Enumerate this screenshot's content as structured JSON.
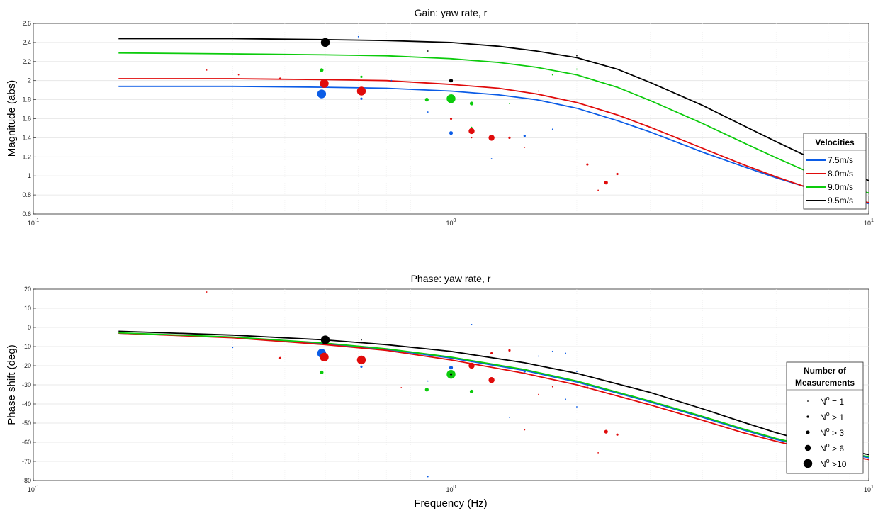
{
  "chart_data": [
    {
      "type": "line",
      "title": "Gain: yaw rate, r",
      "xlabel": "",
      "ylabel": "Magnitude (abs)",
      "xscale": "log",
      "xlim": [
        0.1,
        10
      ],
      "ylim": [
        0.6,
        2.6
      ],
      "x_tick_labels": [
        {
          "value": 0.1,
          "base": "10",
          "exp": "-1"
        },
        {
          "value": 1,
          "base": "10",
          "exp": "0"
        },
        {
          "value": 10,
          "base": "10",
          "exp": "1"
        }
      ],
      "y_ticks": [
        0.6,
        0.8,
        1,
        1.2,
        1.4,
        1.6,
        1.8,
        2,
        2.2,
        2.4,
        2.6
      ],
      "y_tick_labels": [
        "0.6",
        "0.8",
        "1",
        "1.2",
        "1.4",
        "1.6",
        "1.8",
        "2",
        "2.2",
        "2.4",
        "2.6"
      ],
      "grid": true,
      "legend": {
        "title": "Velocities",
        "placement": "bottom-right"
      },
      "series": [
        {
          "name": "7.5m/s",
          "color": "#0b5ce6",
          "x": [
            0.16,
            0.3,
            0.5,
            0.7,
            1.0,
            1.3,
            1.6,
            2.0,
            2.5,
            3.0,
            4.0,
            5.0,
            6.0,
            7.0,
            8.0,
            9.0,
            10.0
          ],
          "y": [
            1.94,
            1.94,
            1.93,
            1.92,
            1.89,
            1.85,
            1.8,
            1.71,
            1.58,
            1.46,
            1.25,
            1.1,
            0.98,
            0.89,
            0.82,
            0.76,
            0.71
          ]
        },
        {
          "name": "8.0m/s",
          "color": "#e00b0b",
          "x": [
            0.16,
            0.3,
            0.5,
            0.7,
            1.0,
            1.3,
            1.6,
            2.0,
            2.5,
            3.0,
            4.0,
            5.0,
            6.0,
            7.0,
            8.0,
            9.0,
            10.0
          ],
          "y": [
            2.02,
            2.02,
            2.01,
            2.0,
            1.96,
            1.92,
            1.86,
            1.77,
            1.64,
            1.51,
            1.29,
            1.12,
            0.99,
            0.89,
            0.82,
            0.76,
            0.72
          ]
        },
        {
          "name": "9.0m/s",
          "color": "#0ccb0c",
          "x": [
            0.16,
            0.3,
            0.5,
            0.7,
            1.0,
            1.3,
            1.6,
            2.0,
            2.5,
            3.0,
            4.0,
            5.0,
            6.0,
            7.0,
            8.0,
            9.0,
            10.0
          ],
          "y": [
            2.29,
            2.28,
            2.27,
            2.26,
            2.23,
            2.19,
            2.14,
            2.06,
            1.93,
            1.79,
            1.55,
            1.35,
            1.19,
            1.06,
            0.96,
            0.88,
            0.82
          ]
        },
        {
          "name": "9.5m/s",
          "color": "#000000",
          "x": [
            0.16,
            0.3,
            0.5,
            0.7,
            1.0,
            1.3,
            1.6,
            2.0,
            2.5,
            3.0,
            4.0,
            5.0,
            6.0,
            7.0,
            8.0,
            9.0,
            10.0
          ],
          "y": [
            2.44,
            2.44,
            2.43,
            2.42,
            2.4,
            2.36,
            2.31,
            2.24,
            2.12,
            1.98,
            1.74,
            1.53,
            1.36,
            1.22,
            1.11,
            1.03,
            0.95
          ]
        }
      ],
      "points": [
        {
          "x": 0.49,
          "y": 1.86,
          "color": "#0b5ce6",
          "n_class": 5
        },
        {
          "x": 0.497,
          "y": 1.97,
          "color": "#e00b0b",
          "n_class": 5
        },
        {
          "x": 0.61,
          "y": 1.89,
          "color": "#e00b0b",
          "n_class": 5
        },
        {
          "x": 0.5,
          "y": 2.4,
          "color": "#000000",
          "n_class": 5
        },
        {
          "x": 1.0,
          "y": 1.81,
          "color": "#0ccb0c",
          "n_class": 5
        },
        {
          "x": 0.49,
          "y": 2.11,
          "color": "#0ccb0c",
          "n_class": 3
        },
        {
          "x": 0.875,
          "y": 1.8,
          "color": "#0ccb0c",
          "n_class": 3
        },
        {
          "x": 1.12,
          "y": 1.76,
          "color": "#0ccb0c",
          "n_class": 3
        },
        {
          "x": 1.0,
          "y": 1.45,
          "color": "#0b5ce6",
          "n_class": 3
        },
        {
          "x": 1.0,
          "y": 2.0,
          "color": "#000000",
          "n_class": 3
        },
        {
          "x": 1.12,
          "y": 1.47,
          "color": "#e00b0b",
          "n_class": 4
        },
        {
          "x": 1.25,
          "y": 1.4,
          "color": "#e00b0b",
          "n_class": 4
        },
        {
          "x": 2.35,
          "y": 0.93,
          "color": "#e00b0b",
          "n_class": 3
        },
        {
          "x": 0.26,
          "y": 2.11,
          "color": "#e00b0b",
          "n_class": 1
        },
        {
          "x": 0.31,
          "y": 2.06,
          "color": "#e00b0b",
          "n_class": 1
        },
        {
          "x": 0.39,
          "y": 2.02,
          "color": "#e00b0b",
          "n_class": 2
        },
        {
          "x": 0.6,
          "y": 2.46,
          "color": "#0b5ce6",
          "n_class": 1
        },
        {
          "x": 0.61,
          "y": 2.04,
          "color": "#0ccb0c",
          "n_class": 2
        },
        {
          "x": 0.61,
          "y": 1.81,
          "color": "#0b5ce6",
          "n_class": 2
        },
        {
          "x": 0.72,
          "y": 2.0,
          "color": "#0b5ce6",
          "n_class": 1
        },
        {
          "x": 0.88,
          "y": 2.31,
          "color": "#000000",
          "n_class": 1
        },
        {
          "x": 0.88,
          "y": 1.67,
          "color": "#0b5ce6",
          "n_class": 1
        },
        {
          "x": 1.0,
          "y": 1.6,
          "color": "#e00b0b",
          "n_class": 2
        },
        {
          "x": 1.12,
          "y": 1.4,
          "color": "#e00b0b",
          "n_class": 1
        },
        {
          "x": 1.12,
          "y": 1.51,
          "color": "#0ccb0c",
          "n_class": 1
        },
        {
          "x": 1.25,
          "y": 1.18,
          "color": "#0b5ce6",
          "n_class": 1
        },
        {
          "x": 1.38,
          "y": 1.4,
          "color": "#e00b0b",
          "n_class": 2
        },
        {
          "x": 1.38,
          "y": 1.76,
          "color": "#0ccb0c",
          "n_class": 1
        },
        {
          "x": 1.5,
          "y": 1.42,
          "color": "#0b5ce6",
          "n_class": 2
        },
        {
          "x": 1.5,
          "y": 1.3,
          "color": "#e00b0b",
          "n_class": 1
        },
        {
          "x": 1.62,
          "y": 1.89,
          "color": "#e00b0b",
          "n_class": 1
        },
        {
          "x": 1.75,
          "y": 1.49,
          "color": "#0b5ce6",
          "n_class": 1
        },
        {
          "x": 1.75,
          "y": 2.06,
          "color": "#0ccb0c",
          "n_class": 1
        },
        {
          "x": 2.0,
          "y": 2.26,
          "color": "#000000",
          "n_class": 1
        },
        {
          "x": 2.0,
          "y": 2.12,
          "color": "#0ccb0c",
          "n_class": 1
        },
        {
          "x": 2.12,
          "y": 1.12,
          "color": "#e00b0b",
          "n_class": 2
        },
        {
          "x": 2.25,
          "y": 0.85,
          "color": "#e00b0b",
          "n_class": 1
        },
        {
          "x": 2.5,
          "y": 1.02,
          "color": "#e00b0b",
          "n_class": 2
        }
      ]
    },
    {
      "type": "line",
      "title": "Phase: yaw rate, r",
      "xlabel": "Frequency (Hz)",
      "ylabel": "Phase shift (deg)",
      "xscale": "log",
      "xlim": [
        0.1,
        10
      ],
      "ylim": [
        -80,
        20
      ],
      "x_tick_labels": [
        {
          "value": 0.1,
          "base": "10",
          "exp": "-1"
        },
        {
          "value": 1,
          "base": "10",
          "exp": "0"
        },
        {
          "value": 10,
          "base": "10",
          "exp": "1"
        }
      ],
      "y_ticks": [
        -80,
        -70,
        -60,
        -50,
        -40,
        -30,
        -20,
        -10,
        0,
        10,
        20
      ],
      "y_tick_labels": [
        "-80",
        "-70",
        "-60",
        "-50",
        "-40",
        "-30",
        "-20",
        "-10",
        "0",
        "10",
        "20"
      ],
      "grid": true,
      "legend": {
        "title_lines": [
          "Number of",
          "Measurements"
        ],
        "placement": "bottom-right"
      },
      "series": [
        {
          "name": "7.5m/s",
          "color": "#0b5ce6",
          "x": [
            0.16,
            0.3,
            0.5,
            0.7,
            1.0,
            1.5,
            2.0,
            3.0,
            4.0,
            5.0,
            6.0,
            7.0,
            8.0,
            9.0,
            10.0
          ],
          "y": [
            -3,
            -5.2,
            -8.5,
            -11.5,
            -16,
            -22.5,
            -28.5,
            -39,
            -47,
            -53.5,
            -58.5,
            -62,
            -64.5,
            -66.5,
            -68
          ]
        },
        {
          "name": "8.0m/s",
          "color": "#e00b0b",
          "x": [
            0.16,
            0.3,
            0.5,
            0.7,
            1.0,
            1.5,
            2.0,
            3.0,
            4.0,
            5.0,
            6.0,
            7.0,
            8.0,
            9.0,
            10.0
          ],
          "y": [
            -3,
            -5.4,
            -9,
            -12,
            -17,
            -24,
            -30,
            -40.5,
            -48.5,
            -55,
            -59.5,
            -63,
            -65.5,
            -67.5,
            -69
          ]
        },
        {
          "name": "9.0m/s",
          "color": "#0ccb0c",
          "x": [
            0.16,
            0.3,
            0.5,
            0.7,
            1.0,
            1.5,
            2.0,
            3.0,
            4.0,
            5.0,
            6.0,
            7.0,
            8.0,
            9.0,
            10.0
          ],
          "y": [
            -2.8,
            -5,
            -8.2,
            -11.2,
            -15.5,
            -22,
            -28,
            -38.5,
            -46.5,
            -53,
            -58,
            -61.5,
            -64,
            -66,
            -67.5
          ]
        },
        {
          "name": "9.5m/s",
          "color": "#000000",
          "x": [
            0.16,
            0.3,
            0.5,
            0.7,
            1.0,
            1.5,
            2.0,
            3.0,
            4.0,
            5.0,
            6.0,
            7.0,
            8.0,
            9.0,
            10.0
          ],
          "y": [
            -2,
            -4,
            -6.5,
            -9,
            -12.5,
            -18.5,
            -24,
            -34,
            -42.5,
            -49.5,
            -55,
            -59,
            -62,
            -64.5,
            -66.5
          ]
        }
      ],
      "points": [
        {
          "x": 0.49,
          "y": -13.5,
          "color": "#0b5ce6",
          "n_class": 5
        },
        {
          "x": 0.497,
          "y": -15.5,
          "color": "#e00b0b",
          "n_class": 5
        },
        {
          "x": 0.61,
          "y": -17,
          "color": "#e00b0b",
          "n_class": 5
        },
        {
          "x": 0.5,
          "y": -6.5,
          "color": "#000000",
          "n_class": 5
        },
        {
          "x": 1.0,
          "y": -24.5,
          "color": "#0ccb0c",
          "n_class": 5
        },
        {
          "x": 1.0,
          "y": -24.5,
          "color": "#000000",
          "n_class": 2
        },
        {
          "x": 1.0,
          "y": -21,
          "color": "#0b5ce6",
          "n_class": 3
        },
        {
          "x": 0.49,
          "y": -23.5,
          "color": "#0ccb0c",
          "n_class": 3
        },
        {
          "x": 0.875,
          "y": -32.5,
          "color": "#0ccb0c",
          "n_class": 3
        },
        {
          "x": 1.12,
          "y": -33.5,
          "color": "#0ccb0c",
          "n_class": 3
        },
        {
          "x": 1.12,
          "y": -20,
          "color": "#e00b0b",
          "n_class": 4
        },
        {
          "x": 1.25,
          "y": -27.5,
          "color": "#e00b0b",
          "n_class": 4
        },
        {
          "x": 2.35,
          "y": -54.5,
          "color": "#e00b0b",
          "n_class": 3
        },
        {
          "x": 0.26,
          "y": 18.5,
          "color": "#e00b0b",
          "n_class": 1
        },
        {
          "x": 0.3,
          "y": -10.5,
          "color": "#0b5ce6",
          "n_class": 1
        },
        {
          "x": 0.39,
          "y": -16,
          "color": "#e00b0b",
          "n_class": 2
        },
        {
          "x": 0.61,
          "y": -20.5,
          "color": "#0b5ce6",
          "n_class": 2
        },
        {
          "x": 0.61,
          "y": -6.5,
          "color": "#000000",
          "n_class": 1
        },
        {
          "x": 0.76,
          "y": -31.5,
          "color": "#e00b0b",
          "n_class": 1
        },
        {
          "x": 0.88,
          "y": -28,
          "color": "#0b5ce6",
          "n_class": 1
        },
        {
          "x": 0.88,
          "y": -78,
          "color": "#0b5ce6",
          "n_class": 1
        },
        {
          "x": 1.12,
          "y": 1.5,
          "color": "#0b5ce6",
          "n_class": 1
        },
        {
          "x": 1.25,
          "y": -13.5,
          "color": "#e00b0b",
          "n_class": 2
        },
        {
          "x": 1.38,
          "y": -12,
          "color": "#e00b0b",
          "n_class": 2
        },
        {
          "x": 1.38,
          "y": -47,
          "color": "#0b5ce6",
          "n_class": 1
        },
        {
          "x": 1.5,
          "y": -23,
          "color": "#0b5ce6",
          "n_class": 2
        },
        {
          "x": 1.5,
          "y": -53.5,
          "color": "#e00b0b",
          "n_class": 1
        },
        {
          "x": 1.62,
          "y": -15,
          "color": "#0b5ce6",
          "n_class": 1
        },
        {
          "x": 1.62,
          "y": -35,
          "color": "#e00b0b",
          "n_class": 1
        },
        {
          "x": 1.75,
          "y": -12.5,
          "color": "#0b5ce6",
          "n_class": 1
        },
        {
          "x": 1.75,
          "y": -31,
          "color": "#e00b0b",
          "n_class": 1
        },
        {
          "x": 1.88,
          "y": -13.5,
          "color": "#0b5ce6",
          "n_class": 1
        },
        {
          "x": 1.88,
          "y": -37.5,
          "color": "#0b5ce6",
          "n_class": 1
        },
        {
          "x": 2.0,
          "y": -23,
          "color": "#0b5ce6",
          "n_class": 1
        },
        {
          "x": 2.0,
          "y": -41.5,
          "color": "#0b5ce6",
          "n_class": 1
        },
        {
          "x": 2.12,
          "y": -31.5,
          "color": "#e00b0b",
          "n_class": 2
        },
        {
          "x": 2.25,
          "y": -65.5,
          "color": "#e00b0b",
          "n_class": 1
        },
        {
          "x": 2.5,
          "y": -56,
          "color": "#e00b0b",
          "n_class": 2
        }
      ]
    }
  ],
  "size_legend": [
    {
      "prefix": "N",
      "sup": "o",
      "suffix": " = 1",
      "n_class": 1
    },
    {
      "prefix": "N",
      "sup": "o",
      "suffix": " > 1",
      "n_class": 2
    },
    {
      "prefix": "N",
      "sup": "o",
      "suffix": " > 3",
      "n_class": 3
    },
    {
      "prefix": "N",
      "sup": "o",
      "suffix": " > 6",
      "n_class": 4
    },
    {
      "prefix": "N",
      "sup": "o",
      "suffix": " >10",
      "n_class": 5
    }
  ]
}
